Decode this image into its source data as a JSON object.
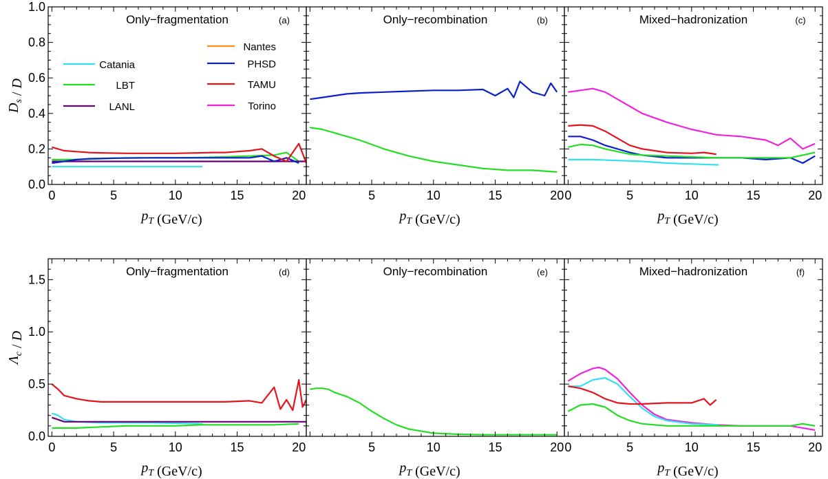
{
  "chart_data": [
    {
      "type": "line",
      "panel_label": "(a)",
      "title": "Only−fragmentation",
      "xlabel": "p_T (GeV/c)",
      "ylabel": "D_s / D",
      "xlim": [
        -0.3,
        20.6
      ],
      "ylim": [
        0,
        1.0
      ],
      "xticks": [
        "0",
        "5",
        "10",
        "15",
        "20"
      ],
      "yticks": [
        "0.0",
        "0.2",
        "0.4",
        "0.6",
        "0.8",
        "1.0"
      ],
      "legend": {
        "placement": "upper-left",
        "entries": [
          {
            "name": "Catania",
            "color": "#33e0f0"
          },
          {
            "name": "LBT",
            "color": "#22dd22"
          },
          {
            "name": "LANL",
            "color": "#660077"
          },
          {
            "name": "Nantes",
            "color": "#ff8c1a"
          },
          {
            "name": "PHSD",
            "color": "#0a1fcc"
          },
          {
            "name": "TAMU",
            "color": "#e3141b"
          },
          {
            "name": "Torino",
            "color": "#ee22dd"
          }
        ]
      },
      "series": [
        {
          "name": "Catania",
          "color": "#33e0f0",
          "x": [
            0,
            12.2
          ],
          "y": [
            0.1,
            0.1
          ]
        },
        {
          "name": "LBT",
          "color": "#22dd22",
          "x": [
            0,
            2,
            4,
            6,
            8,
            10,
            12,
            14,
            16,
            18,
            19,
            20
          ],
          "y": [
            0.14,
            0.14,
            0.145,
            0.15,
            0.15,
            0.15,
            0.152,
            0.155,
            0.16,
            0.165,
            0.18,
            0.13
          ]
        },
        {
          "name": "LANL",
          "color": "#660077",
          "x": [
            0,
            20.6
          ],
          "y": [
            0.13,
            0.13
          ]
        },
        {
          "name": "PHSD",
          "color": "#0a1fcc",
          "x": [
            0,
            1,
            2,
            3,
            5,
            8,
            10,
            12,
            14,
            16,
            17,
            18,
            19,
            20
          ],
          "y": [
            0.12,
            0.13,
            0.14,
            0.145,
            0.148,
            0.15,
            0.15,
            0.15,
            0.15,
            0.15,
            0.16,
            0.13,
            0.15,
            0.12
          ]
        },
        {
          "name": "TAMU",
          "color": "#e3141b",
          "x": [
            0,
            0.5,
            1,
            2,
            3,
            4,
            6,
            8,
            10,
            12,
            13,
            14,
            15,
            16,
            17,
            18,
            19,
            20,
            20.6
          ],
          "y": [
            0.21,
            0.2,
            0.19,
            0.185,
            0.18,
            0.178,
            0.175,
            0.175,
            0.175,
            0.178,
            0.18,
            0.18,
            0.185,
            0.19,
            0.2,
            0.16,
            0.13,
            0.23,
            0.12
          ]
        }
      ]
    },
    {
      "type": "line",
      "panel_label": "(b)",
      "title": "Only−recombination",
      "xlabel": "p_T (GeV/c)",
      "ylabel": "",
      "xlim": [
        -0.3,
        20.6
      ],
      "ylim": [
        0,
        1.0
      ],
      "xticks": [
        "5",
        "10",
        "15",
        "20"
      ],
      "series": [
        {
          "name": "PHSD",
          "color": "#0a1fcc",
          "x": [
            0,
            1,
            2,
            3,
            4,
            6,
            8,
            10,
            12,
            14,
            15,
            16,
            16.5,
            17,
            18,
            19,
            19.5,
            20
          ],
          "y": [
            0.48,
            0.49,
            0.5,
            0.51,
            0.515,
            0.52,
            0.525,
            0.53,
            0.53,
            0.535,
            0.5,
            0.54,
            0.49,
            0.58,
            0.52,
            0.5,
            0.57,
            0.52
          ]
        },
        {
          "name": "LBT",
          "color": "#22dd22",
          "x": [
            0,
            1,
            2,
            3,
            4,
            6,
            8,
            10,
            12,
            14,
            16,
            18,
            20
          ],
          "y": [
            0.32,
            0.31,
            0.29,
            0.27,
            0.25,
            0.2,
            0.16,
            0.13,
            0.11,
            0.09,
            0.08,
            0.08,
            0.07
          ]
        }
      ]
    },
    {
      "type": "line",
      "panel_label": "(c)",
      "title": "Mixed−hadronization",
      "xlabel": "p_T (GeV/c)",
      "ylabel": "",
      "xlim": [
        -0.3,
        20.6
      ],
      "ylim": [
        0,
        1.0
      ],
      "xticks": [
        "0",
        "5",
        "10",
        "15",
        "20"
      ],
      "series": [
        {
          "name": "Torino",
          "color": "#ee22dd",
          "x": [
            0,
            1,
            2,
            3,
            4,
            5,
            6,
            8,
            10,
            12,
            14,
            16,
            17,
            18,
            19,
            20
          ],
          "y": [
            0.52,
            0.53,
            0.54,
            0.52,
            0.48,
            0.44,
            0.4,
            0.35,
            0.31,
            0.28,
            0.27,
            0.25,
            0.22,
            0.26,
            0.2,
            0.23
          ]
        },
        {
          "name": "TAMU",
          "color": "#e3141b",
          "x": [
            0,
            1,
            2,
            3,
            4,
            5,
            6,
            8,
            10,
            11,
            12
          ],
          "y": [
            0.33,
            0.335,
            0.33,
            0.3,
            0.26,
            0.22,
            0.2,
            0.18,
            0.175,
            0.18,
            0.17
          ]
        },
        {
          "name": "PHSD",
          "color": "#0a1fcc",
          "x": [
            0,
            1,
            2,
            3,
            4,
            5,
            6,
            8,
            10,
            12,
            14,
            16,
            18,
            19,
            20
          ],
          "y": [
            0.27,
            0.27,
            0.25,
            0.22,
            0.2,
            0.18,
            0.165,
            0.15,
            0.15,
            0.15,
            0.15,
            0.14,
            0.15,
            0.12,
            0.16
          ]
        },
        {
          "name": "LBT",
          "color": "#22dd22",
          "x": [
            0,
            1,
            2,
            3,
            4,
            5,
            6,
            8,
            10,
            12,
            14,
            16,
            18,
            20
          ],
          "y": [
            0.21,
            0.225,
            0.22,
            0.2,
            0.185,
            0.17,
            0.165,
            0.16,
            0.155,
            0.15,
            0.15,
            0.15,
            0.15,
            0.18
          ]
        },
        {
          "name": "Catania",
          "color": "#33e0f0",
          "x": [
            0,
            2,
            4,
            6,
            8,
            10,
            12.2
          ],
          "y": [
            0.14,
            0.14,
            0.135,
            0.13,
            0.12,
            0.115,
            0.11
          ]
        }
      ]
    },
    {
      "type": "line",
      "panel_label": "(d)",
      "title": "Only−fragmentation",
      "xlabel": "p_T (GeV/c)",
      "ylabel": "Λ_c / D",
      "xlim": [
        -0.3,
        20.6
      ],
      "ylim": [
        0,
        1.7
      ],
      "xticks": [
        "0",
        "5",
        "10",
        "15",
        "20"
      ],
      "yticks": [
        "0.0",
        "0.5",
        "1.0",
        "1.5"
      ],
      "series": [
        {
          "name": "TAMU",
          "color": "#e3141b",
          "x": [
            0,
            0.5,
            1,
            2,
            3,
            4,
            6,
            8,
            10,
            12,
            14,
            16,
            17,
            18,
            18.5,
            19,
            19.5,
            20,
            20.3,
            20.6
          ],
          "y": [
            0.5,
            0.45,
            0.39,
            0.36,
            0.34,
            0.33,
            0.33,
            0.33,
            0.33,
            0.33,
            0.33,
            0.34,
            0.32,
            0.47,
            0.26,
            0.35,
            0.25,
            0.54,
            0.28,
            0.35
          ]
        },
        {
          "name": "Catania",
          "color": "#33e0f0",
          "x": [
            0,
            0.5,
            1,
            2,
            4,
            8,
            12.2
          ],
          "y": [
            0.22,
            0.2,
            0.16,
            0.14,
            0.13,
            0.13,
            0.12
          ]
        },
        {
          "name": "LANL",
          "color": "#660077",
          "x": [
            0,
            0.5,
            1,
            20.6
          ],
          "y": [
            0.18,
            0.16,
            0.14,
            0.14
          ]
        },
        {
          "name": "LBT",
          "color": "#22dd22",
          "x": [
            0,
            2,
            4,
            6,
            8,
            10,
            12,
            14,
            16,
            18,
            20
          ],
          "y": [
            0.08,
            0.08,
            0.09,
            0.1,
            0.1,
            0.1,
            0.11,
            0.11,
            0.11,
            0.11,
            0.12
          ]
        }
      ]
    },
    {
      "type": "line",
      "panel_label": "(e)",
      "title": "Only−recombination",
      "xlabel": "p_T (GeV/c)",
      "ylabel": "",
      "xlim": [
        -0.3,
        20.6
      ],
      "ylim": [
        0,
        1.7
      ],
      "xticks": [
        "5",
        "10",
        "15",
        "20"
      ],
      "series": [
        {
          "name": "LBT",
          "color": "#22dd22",
          "x": [
            0,
            0.5,
            1,
            1.5,
            2,
            3,
            4,
            5,
            6,
            7,
            8,
            9,
            10,
            12,
            14,
            16,
            18,
            20
          ],
          "y": [
            0.45,
            0.46,
            0.46,
            0.45,
            0.42,
            0.38,
            0.32,
            0.24,
            0.17,
            0.11,
            0.07,
            0.05,
            0.03,
            0.02,
            0.015,
            0.015,
            0.015,
            0.015
          ]
        }
      ]
    },
    {
      "type": "line",
      "panel_label": "(f)",
      "title": "Mixed−hadronization",
      "xlabel": "p_T (GeV/c)",
      "ylabel": "",
      "xlim": [
        -0.3,
        20.6
      ],
      "ylim": [
        0,
        1.7
      ],
      "xticks": [
        "0",
        "5",
        "10",
        "15",
        "20"
      ],
      "series": [
        {
          "name": "Torino",
          "color": "#ee22dd",
          "x": [
            0,
            1,
            2,
            2.5,
            3,
            4,
            5,
            6,
            7,
            8,
            10,
            12,
            14,
            16,
            18,
            20
          ],
          "y": [
            0.53,
            0.6,
            0.65,
            0.66,
            0.64,
            0.55,
            0.42,
            0.3,
            0.21,
            0.16,
            0.13,
            0.11,
            0.1,
            0.1,
            0.1,
            0.06
          ]
        },
        {
          "name": "Catania",
          "color": "#33e0f0",
          "x": [
            0,
            1,
            2,
            3,
            4,
            5,
            6,
            7,
            8,
            10,
            12.2
          ],
          "y": [
            0.48,
            0.48,
            0.54,
            0.56,
            0.5,
            0.38,
            0.27,
            0.19,
            0.15,
            0.12,
            0.11
          ]
        },
        {
          "name": "TAMU",
          "color": "#e3141b",
          "x": [
            0,
            1,
            2,
            3,
            4,
            5,
            6,
            8,
            10,
            11,
            11.5,
            12
          ],
          "y": [
            0.48,
            0.46,
            0.42,
            0.36,
            0.32,
            0.31,
            0.31,
            0.32,
            0.32,
            0.36,
            0.3,
            0.35
          ]
        },
        {
          "name": "LBT",
          "color": "#22dd22",
          "x": [
            0,
            1,
            2,
            3,
            4,
            5,
            6,
            8,
            10,
            12,
            14,
            16,
            18,
            19,
            20
          ],
          "y": [
            0.24,
            0.3,
            0.31,
            0.28,
            0.2,
            0.15,
            0.12,
            0.1,
            0.1,
            0.1,
            0.1,
            0.1,
            0.1,
            0.12,
            0.1
          ]
        }
      ]
    }
  ]
}
